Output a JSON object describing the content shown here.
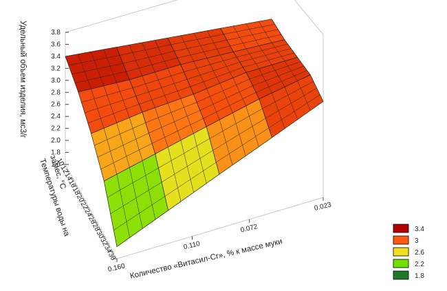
{
  "chart_data": {
    "type": "surface",
    "zlabel": "Удельный объем изделия, мс3/г",
    "ylabel": "Температуры воды на замес, °С",
    "xlabel": "Количество «Витасил-Cr», % к массе муки",
    "x": [
      0.16,
      0.126,
      0.092,
      0.057,
      0.023
    ],
    "y": [
      10,
      16.5,
      23,
      29.5,
      36
    ],
    "z": [
      [
        3.4,
        3.3,
        3.2,
        3.1,
        3.0
      ],
      [
        3.2,
        3.15,
        3.15,
        3.1,
        3.05
      ],
      [
        2.9,
        3.0,
        3.05,
        3.15,
        3.15
      ],
      [
        2.5,
        2.7,
        2.9,
        3.1,
        3.25
      ],
      [
        1.8,
        2.15,
        2.5,
        2.85,
        3.2
      ]
    ],
    "xlim": [
      0.16,
      0.023
    ],
    "ylim": [
      36,
      10
    ],
    "zlim": [
      1.6,
      3.8
    ],
    "xticks": [
      {
        "value": 0.16,
        "label": "0.160"
      },
      {
        "value": 0.11,
        "label": "0.110"
      },
      0.072,
      0.023
    ],
    "yticks": [
      10,
      12,
      14,
      16,
      18,
      20,
      22,
      24,
      26,
      28,
      30,
      32,
      34,
      36
    ],
    "zticks": [
      1.6,
      1.8,
      {
        "value": 2,
        "label": "2.0"
      },
      2.2,
      2.4,
      2.6,
      2.8,
      {
        "value": 3,
        "label": "3.0"
      },
      3.2,
      3.4,
      3.6,
      3.8
    ],
    "legend": [
      {
        "value": 3.4,
        "color": "#b00000"
      },
      {
        "value": 3,
        "color": "#ff5a10"
      },
      {
        "value": 2.6,
        "color": "#f0e020"
      },
      {
        "value": 2.2,
        "color": "#70e000"
      },
      {
        "value": 1.8,
        "color": "#1e7a28"
      }
    ]
  }
}
